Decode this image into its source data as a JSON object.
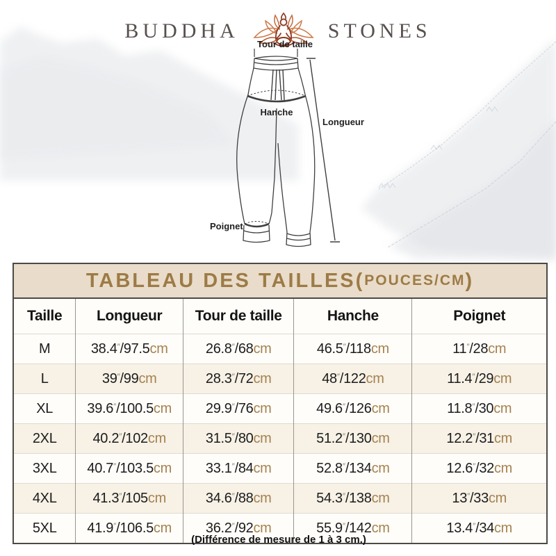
{
  "brand": {
    "name_left": "BUDDHA",
    "name_right": "STONES",
    "logo_icon": "lotus-meditation-icon"
  },
  "diagram": {
    "waist_label": "Tour de taille",
    "hip_label": "Hanche",
    "length_label": "Longueur",
    "cuff_label": "Poignet"
  },
  "table": {
    "title_main": "TABLEAU DES TAILLES(",
    "title_sub": "POUCES/CM",
    "title_close": ")",
    "inch_mark": "″",
    "separator": "/",
    "cm_unit": "cm",
    "columns": [
      "Taille",
      "Longueur",
      "Tour de taille",
      "Hanche",
      "Poignet"
    ],
    "rows": [
      {
        "size": "M",
        "cells": [
          {
            "in": "38.4",
            "cm": "97.5"
          },
          {
            "in": "26.8",
            "cm": "68"
          },
          {
            "in": "46.5",
            "cm": "118"
          },
          {
            "in": "11",
            "cm": "28"
          }
        ]
      },
      {
        "size": "L",
        "cells": [
          {
            "in": "39",
            "cm": "99"
          },
          {
            "in": "28.3",
            "cm": "72"
          },
          {
            "in": "48",
            "cm": "122"
          },
          {
            "in": "11.4",
            "cm": "29"
          }
        ]
      },
      {
        "size": "XL",
        "cells": [
          {
            "in": "39.6",
            "cm": "100.5"
          },
          {
            "in": "29.9",
            "cm": "76"
          },
          {
            "in": "49.6",
            "cm": "126"
          },
          {
            "in": "11.8",
            "cm": "30"
          }
        ]
      },
      {
        "size": "2XL",
        "cells": [
          {
            "in": "40.2",
            "cm": "102"
          },
          {
            "in": "31.5",
            "cm": "80"
          },
          {
            "in": "51.2",
            "cm": "130"
          },
          {
            "in": "12.2",
            "cm": "31"
          }
        ]
      },
      {
        "size": "3XL",
        "cells": [
          {
            "in": "40.7",
            "cm": "103.5"
          },
          {
            "in": "33.1",
            "cm": "84"
          },
          {
            "in": "52.8",
            "cm": "134"
          },
          {
            "in": "12.6",
            "cm": "32"
          }
        ]
      },
      {
        "size": "4XL",
        "cells": [
          {
            "in": "41.3",
            "cm": "105"
          },
          {
            "in": "34.6",
            "cm": "88"
          },
          {
            "in": "54.3",
            "cm": "138"
          },
          {
            "in": "13",
            "cm": "33"
          }
        ]
      },
      {
        "size": "5XL",
        "cells": [
          {
            "in": "41.9",
            "cm": "106.5"
          },
          {
            "in": "36.2",
            "cm": "92"
          },
          {
            "in": "55.9",
            "cm": "142"
          },
          {
            "in": "13.4",
            "cm": "34"
          }
        ]
      }
    ]
  },
  "footer": {
    "note": "(Différence de mesure de 1 à 3 cm.)"
  },
  "colors": {
    "accent_cm": "#a5824f",
    "title_brown": "#9d7b46",
    "band_bg": "#e9dcca",
    "row_alt_bg": "#f7f1e6",
    "logo_text": "#57504e",
    "lotus_dark": "#8c3a22",
    "lotus_light": "#cd7a4c"
  }
}
